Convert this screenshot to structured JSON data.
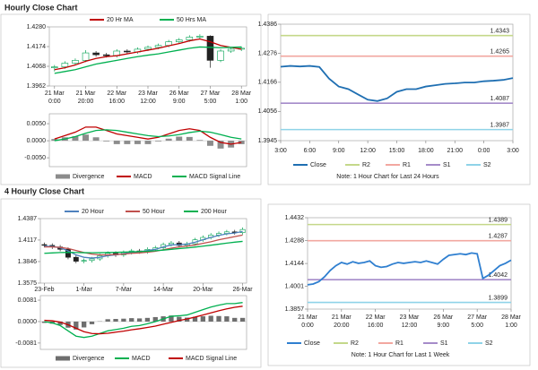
{
  "chart_data": [
    {
      "type": "candlestick",
      "title": "Hourly Close Chart",
      "categories": [
        [
          "21 Mar",
          "0:00"
        ],
        null,
        null,
        [
          "21 Mar",
          "20:00"
        ],
        null,
        null,
        [
          "22 Mar",
          "16:00"
        ],
        null,
        null,
        [
          "23 Mar",
          "12:00"
        ],
        null,
        null,
        [
          "26 Mar",
          "9:00"
        ],
        null,
        null,
        [
          "27 Mar",
          "5:00"
        ],
        null,
        null,
        [
          "28 Mar",
          "1:00"
        ]
      ],
      "open": [
        1.406,
        1.4065,
        1.4085,
        1.41,
        1.414,
        1.413,
        1.4125,
        1.415,
        1.4145,
        1.416,
        1.417,
        1.418,
        1.42,
        1.421,
        1.4225,
        1.423,
        1.41,
        1.415,
        1.416
      ],
      "high": [
        1.4075,
        1.4095,
        1.411,
        1.4155,
        1.415,
        1.414,
        1.416,
        1.416,
        1.417,
        1.418,
        1.419,
        1.421,
        1.422,
        1.4235,
        1.424,
        1.4235,
        1.416,
        1.417,
        1.4175
      ],
      "low": [
        1.404,
        1.4055,
        1.4075,
        1.409,
        1.412,
        1.4115,
        1.4115,
        1.4135,
        1.4135,
        1.415,
        1.416,
        1.417,
        1.419,
        1.42,
        1.4215,
        1.406,
        1.409,
        1.414,
        1.415
      ],
      "close": [
        1.4065,
        1.4085,
        1.41,
        1.414,
        1.413,
        1.4125,
        1.415,
        1.4145,
        1.416,
        1.417,
        1.418,
        1.42,
        1.421,
        1.4225,
        1.423,
        1.41,
        1.415,
        1.416,
        1.4165
      ],
      "up_color": "#00a050",
      "down_color": "#222222",
      "series": [
        {
          "name": "20 Hr MA",
          "color": "#c00000",
          "values": [
            1.405,
            1.406,
            1.4075,
            1.4095,
            1.411,
            1.412,
            1.4125,
            1.4135,
            1.4145,
            1.4155,
            1.4165,
            1.4178,
            1.419,
            1.4205,
            1.4215,
            1.42,
            1.418,
            1.417,
            1.416
          ]
        },
        {
          "name": "50 Hrs MA",
          "color": "#00b050",
          "values": [
            1.403,
            1.404,
            1.405,
            1.4065,
            1.408,
            1.409,
            1.41,
            1.411,
            1.412,
            1.4128,
            1.4135,
            1.4145,
            1.4155,
            1.4165,
            1.4172,
            1.417,
            1.4168,
            1.417,
            1.4172
          ]
        }
      ],
      "ylim": [
        1.3962,
        1.428
      ],
      "yticks": [
        1.3962,
        1.4068,
        1.4174,
        {
          "value": 1.428,
          "label": "1.4280"
        }
      ],
      "legend": "top"
    },
    {
      "type": "macd",
      "series": [
        {
          "name": "Divergence",
          "kind": "bar",
          "color": "#8c8c8c",
          "values": [
            0.0005,
            0.001,
            0.0013,
            0.0018,
            0.001,
            -0.0002,
            -0.001,
            -0.001,
            -0.001,
            -0.001,
            -0.0002,
            0.0006,
            0.0012,
            0.0011,
            0.0002,
            -0.0015,
            -0.0023,
            -0.002,
            -0.001
          ]
        },
        {
          "name": "MACD",
          "kind": "line",
          "color": "#c00000",
          "values": [
            0.0005,
            0.0015,
            0.0025,
            0.004,
            0.004,
            0.003,
            0.002,
            0.0015,
            0.001,
            0.0005,
            0.001,
            0.002,
            0.003,
            0.0035,
            0.003,
            0.001,
            -0.0005,
            -0.001,
            -0.0005
          ]
        },
        {
          "name": "MACD Signal Line",
          "kind": "line",
          "color": "#00b050",
          "values": [
            0.0,
            0.0005,
            0.0012,
            0.0022,
            0.003,
            0.0032,
            0.003,
            0.0025,
            0.002,
            0.0015,
            0.0012,
            0.0014,
            0.0018,
            0.0024,
            0.0028,
            0.0025,
            0.0018,
            0.001,
            0.0005
          ]
        }
      ],
      "ylim": [
        -0.0076,
        0.0079
      ],
      "yticks": [
        {
          "value": -0.005,
          "label": "-0.0050"
        },
        {
          "value": 0,
          "label": "0.0000"
        },
        {
          "value": 0.005,
          "label": "0.0050"
        }
      ],
      "legend": "bottom"
    },
    {
      "type": "line",
      "categories": [
        "3:00",
        null,
        null,
        "6:00",
        null,
        null,
        "9:00",
        null,
        null,
        "12:00",
        null,
        null,
        "15:00",
        null,
        null,
        "18:00",
        null,
        null,
        "21:00",
        null,
        null,
        "0:00",
        null,
        null,
        "3:00"
      ],
      "series": [
        {
          "name": "Close",
          "color": "#1f6fb2",
          "values": [
            1.4225,
            1.4228,
            1.4226,
            1.4228,
            1.4224,
            1.418,
            1.415,
            1.414,
            1.412,
            1.41,
            1.4095,
            1.4105,
            1.413,
            1.414,
            1.414,
            1.415,
            1.4155,
            1.416,
            1.4162,
            1.4165,
            1.4165,
            1.417,
            1.4172,
            1.4175,
            1.4182
          ]
        }
      ],
      "levels": [
        {
          "name": "R2",
          "color": "#c4d88a",
          "value": 1.4343
        },
        {
          "name": "R1",
          "color": "#f2a7a0",
          "value": 1.4265
        },
        {
          "name": "S1",
          "color": "#a58bc9",
          "value": 1.4087
        },
        {
          "name": "S2",
          "color": "#8fd3e8",
          "value": 1.3987
        }
      ],
      "ylim": [
        1.3945,
        1.4386
      ],
      "yticks": [
        1.3945,
        1.4056,
        1.4166,
        1.4276,
        1.4386
      ],
      "note": "Note: 1 Hour Chart for Last 24 Hours",
      "legend": "bottom"
    },
    {
      "type": "candlestick",
      "title": "4 Hourly Close Chart",
      "categories": [
        "23-Feb",
        null,
        null,
        null,
        null,
        "1-Mar",
        null,
        null,
        null,
        null,
        "7-Mar",
        null,
        null,
        null,
        null,
        "14-Mar",
        null,
        null,
        null,
        null,
        "20-Mar",
        null,
        null,
        null,
        null,
        "26-Mar"
      ],
      "open": [
        1.406,
        1.405,
        1.403,
        1.4,
        1.39,
        1.385,
        1.386,
        1.388,
        1.392,
        1.395,
        1.393,
        1.396,
        1.398,
        1.397,
        1.4,
        1.402,
        1.406,
        1.408,
        1.405,
        1.407,
        1.412,
        1.415,
        1.418,
        1.42,
        1.422,
        1.421
      ],
      "high": [
        1.4085,
        1.4075,
        1.4055,
        1.4025,
        1.3925,
        1.3885,
        1.3905,
        1.3945,
        1.3975,
        1.3975,
        1.3985,
        1.4005,
        1.4005,
        1.4025,
        1.4045,
        1.4085,
        1.4105,
        1.4105,
        1.4095,
        1.4145,
        1.4175,
        1.4205,
        1.4225,
        1.4245,
        1.4245,
        1.4275
      ],
      "low": [
        1.4025,
        1.4005,
        1.3975,
        1.3875,
        1.3825,
        1.3825,
        1.3835,
        1.3855,
        1.3895,
        1.3905,
        1.3905,
        1.3935,
        1.3945,
        1.3945,
        1.3975,
        1.3995,
        1.4035,
        1.4025,
        1.4025,
        1.4045,
        1.4095,
        1.4125,
        1.4155,
        1.4175,
        1.4185,
        1.4185
      ],
      "close": [
        1.405,
        1.403,
        1.4,
        1.39,
        1.385,
        1.386,
        1.388,
        1.392,
        1.395,
        1.393,
        1.396,
        1.398,
        1.397,
        1.4,
        1.402,
        1.406,
        1.408,
        1.405,
        1.407,
        1.412,
        1.415,
        1.418,
        1.42,
        1.422,
        1.421,
        1.425
      ],
      "up_color": "#00a050",
      "down_color": "#222222",
      "series": [
        {
          "name": "20 Hour",
          "color": "#4f81bd",
          "values": [
            1.404,
            1.4035,
            1.402,
            1.398,
            1.393,
            1.39,
            1.389,
            1.39,
            1.392,
            1.393,
            1.3945,
            1.396,
            1.397,
            1.3985,
            1.4,
            1.403,
            1.4055,
            1.406,
            1.4065,
            1.409,
            1.412,
            1.415,
            1.4175,
            1.4195,
            1.4205,
            1.4225
          ]
        },
        {
          "name": "50 Hour",
          "color": "#c0504d",
          "values": [
            1.403,
            1.403,
            1.4025,
            1.401,
            1.3985,
            1.396,
            1.394,
            1.393,
            1.393,
            1.3935,
            1.394,
            1.395,
            1.3955,
            1.3965,
            1.3975,
            1.3995,
            1.4015,
            1.403,
            1.404,
            1.4055,
            1.4075,
            1.4095,
            1.412,
            1.414,
            1.416,
            1.418
          ]
        },
        {
          "name": "200 Hour",
          "color": "#00b050",
          "values": [
            1.395,
            1.3955,
            1.396,
            1.3962,
            1.396,
            1.3958,
            1.3957,
            1.3958,
            1.396,
            1.3962,
            1.3965,
            1.3968,
            1.3972,
            1.3976,
            1.3982,
            1.399,
            1.4,
            1.401,
            1.4018,
            1.4028,
            1.404,
            1.4052,
            1.4065,
            1.4078,
            1.409,
            1.41
          ]
        }
      ],
      "ylim": [
        1.3575,
        1.4387
      ],
      "yticks": [
        1.3575,
        1.3846,
        1.4117,
        1.4387
      ],
      "legend": "top"
    },
    {
      "type": "macd",
      "series": [
        {
          "name": "Divergence",
          "kind": "bar",
          "color": "#6e6e6e",
          "values": [
            -0.0005,
            -0.0008,
            -0.0013,
            -0.0023,
            -0.003,
            -0.0022,
            -0.001,
            0.0001,
            0.0009,
            0.001,
            0.0011,
            0.0013,
            0.0012,
            0.0014,
            0.0017,
            0.002,
            0.0023,
            0.0018,
            0.0015,
            0.0018,
            0.002,
            0.0022,
            0.0021,
            0.002,
            0.0014,
            0.0014
          ]
        },
        {
          "name": "MACD",
          "kind": "line",
          "color": "#00b050",
          "values": [
            0.0,
            -0.0005,
            -0.0015,
            -0.0035,
            -0.0055,
            -0.006,
            -0.0055,
            -0.0045,
            -0.0035,
            -0.003,
            -0.0025,
            -0.0018,
            -0.0015,
            -0.0008,
            0.0,
            0.001,
            0.002,
            0.0022,
            0.0025,
            0.0035,
            0.0045,
            0.0055,
            0.0062,
            0.0068,
            0.0068,
            0.0072
          ]
        },
        {
          "name": "MACD Signal Line",
          "kind": "line",
          "color": "#c00000",
          "values": [
            0.0005,
            0.0003,
            -0.0002,
            -0.0012,
            -0.0025,
            -0.0038,
            -0.0045,
            -0.0046,
            -0.0044,
            -0.004,
            -0.0036,
            -0.0031,
            -0.0027,
            -0.0022,
            -0.0017,
            -0.001,
            -0.0003,
            0.0004,
            0.001,
            0.0017,
            0.0025,
            0.0033,
            0.0041,
            0.0048,
            0.0054,
            0.0058
          ]
        }
      ],
      "ylim": [
        -0.0105,
        0.0098
      ],
      "yticks": [
        -0.0081,
        {
          "value": 0,
          "label": "0.0000"
        },
        0.0081
      ],
      "legend": "bottom"
    },
    {
      "type": "line",
      "categories": [
        [
          "21 Mar",
          "0:00"
        ],
        null,
        null,
        null,
        null,
        null,
        [
          "21 Mar",
          "20:00"
        ],
        null,
        null,
        null,
        null,
        null,
        [
          "22 Mar",
          "16:00"
        ],
        null,
        null,
        null,
        null,
        null,
        [
          "23 Mar",
          "12:00"
        ],
        null,
        null,
        null,
        null,
        null,
        [
          "26 Mar",
          "9:00"
        ],
        null,
        null,
        null,
        null,
        null,
        [
          "27 Mar",
          "5:00"
        ],
        null,
        null,
        null,
        null,
        null,
        [
          "28 Mar",
          "1:00"
        ]
      ],
      "series": [
        {
          "name": "Close",
          "color": "#2f7fd0",
          "values": [
            1.401,
            1.4015,
            1.403,
            1.406,
            1.41,
            1.413,
            1.415,
            1.414,
            1.4155,
            1.4145,
            1.415,
            1.416,
            1.413,
            1.412,
            1.4125,
            1.414,
            1.415,
            1.4145,
            1.415,
            1.4155,
            1.415,
            1.416,
            1.415,
            1.414,
            1.417,
            1.4195,
            1.42,
            1.4205,
            1.42,
            1.421,
            1.4205,
            1.405,
            1.407,
            1.41,
            1.413,
            1.4145,
            1.4165
          ]
        }
      ],
      "levels": [
        {
          "name": "R2",
          "color": "#c4d88a",
          "value": 1.4389
        },
        {
          "name": "R1",
          "color": "#f2a7a0",
          "value": 1.4287
        },
        {
          "name": "S1",
          "color": "#a58bc9",
          "value": 1.4042
        },
        {
          "name": "S2",
          "color": "#8fd3e8",
          "value": 1.3899
        }
      ],
      "ylim": [
        1.3857,
        1.4432
      ],
      "yticks": [
        1.3857,
        1.4001,
        1.4144,
        1.4288,
        1.4432
      ],
      "note": "Note: 1 Hour Chart for Last 1 Week",
      "legend": "bottom"
    }
  ]
}
